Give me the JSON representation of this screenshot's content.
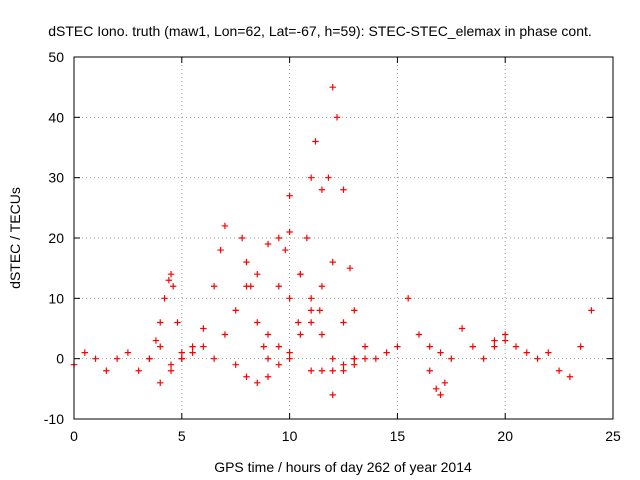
{
  "chart_data": {
    "type": "scatter",
    "title": "dSTEC Iono. truth (maw1, Lon=62, Lat=-67, h=59): STEC-STEC_elemax in phase cont.",
    "xlabel": "GPS time / hours of day 262 of year 2014",
    "ylabel": "dSTEC  / TECUs",
    "xlim": [
      0,
      25
    ],
    "ylim": [
      -10,
      50
    ],
    "xticks": [
      0,
      5,
      10,
      15,
      20,
      25
    ],
    "yticks": [
      -10,
      0,
      10,
      20,
      30,
      40,
      50
    ],
    "grid": true,
    "legend": "none",
    "marker": "+",
    "color": "#ff0000",
    "series": [
      {
        "x": [
          0.0,
          0.5,
          1.0,
          1.5,
          2.0,
          2.5,
          3.0,
          3.5,
          4.0,
          4.5,
          5.0,
          5.5,
          6.0
        ],
        "y": [
          -1,
          1,
          0,
          -2,
          0,
          1,
          -2,
          0,
          2,
          -1,
          0,
          1,
          2
        ]
      },
      {
        "x": [
          3.5,
          3.8,
          4.0,
          4.2,
          4.4,
          4.5,
          4.6,
          4.8,
          5.0
        ],
        "y": [
          0,
          3,
          6,
          10,
          13,
          14,
          12,
          6,
          1
        ]
      },
      {
        "x": [
          4.0,
          4.5,
          5.0,
          5.5,
          6.0,
          6.5,
          6.8,
          7.0
        ],
        "y": [
          -4,
          -2,
          0,
          2,
          5,
          12,
          18,
          22
        ]
      },
      {
        "x": [
          7.8,
          8.0,
          8.2,
          8.5,
          8.8,
          9.0
        ],
        "y": [
          20,
          16,
          12,
          6,
          2,
          0
        ]
      },
      {
        "x": [
          6.5,
          7.0,
          7.5,
          8.0,
          8.5,
          9.0,
          9.5,
          10.0
        ],
        "y": [
          0,
          4,
          8,
          12,
          14,
          19,
          20,
          21
        ]
      },
      {
        "x": [
          7.5,
          8.0,
          8.5,
          9.0,
          9.5,
          10.0,
          10.5,
          11.0,
          11.5
        ],
        "y": [
          -1,
          -3,
          -4,
          -3,
          -1,
          1,
          4,
          8,
          12
        ]
      },
      {
        "x": [
          9.0,
          9.5,
          9.8,
          10.0,
          10.5,
          11.0,
          11.5,
          12.0
        ],
        "y": [
          4,
          12,
          18,
          27,
          14,
          6,
          -2,
          -6
        ]
      },
      {
        "x": [
          9.5,
          10.0,
          10.5,
          11.0,
          11.5,
          12.0,
          12.5,
          13.0
        ],
        "y": [
          2,
          10,
          14,
          10,
          4,
          0,
          -2,
          -1
        ]
      },
      {
        "x": [
          10.0,
          10.4,
          10.8,
          11.0,
          11.2,
          11.5,
          12.0,
          12.5,
          13.0
        ],
        "y": [
          0,
          6,
          20,
          30,
          36,
          28,
          16,
          6,
          0
        ]
      },
      {
        "x": [
          11.0,
          11.4,
          11.8,
          12.0,
          12.2,
          12.5,
          12.8,
          13.0,
          13.5
        ],
        "y": [
          -2,
          8,
          30,
          45,
          40,
          28,
          15,
          8,
          0
        ]
      },
      {
        "x": [
          12.0,
          12.5,
          13.0,
          13.5,
          14.0,
          14.5,
          15.0,
          15.5,
          16.0,
          16.5,
          17.0
        ],
        "y": [
          -2,
          -1,
          0,
          2,
          0,
          1,
          2,
          10,
          4,
          2,
          1
        ]
      },
      {
        "x": [
          16.5,
          16.8,
          17.0,
          17.2,
          17.5,
          18.0,
          18.5,
          19.0,
          19.5,
          20.0
        ],
        "y": [
          -2,
          -5,
          -6,
          -4,
          0,
          5,
          2,
          0,
          2,
          3
        ]
      },
      {
        "x": [
          19.5,
          20.0,
          20.5,
          21.0,
          21.5,
          22.0,
          22.5,
          23.0,
          23.5,
          24.0
        ],
        "y": [
          3,
          4,
          2,
          1,
          0,
          1,
          -2,
          -3,
          2,
          8
        ]
      }
    ]
  }
}
